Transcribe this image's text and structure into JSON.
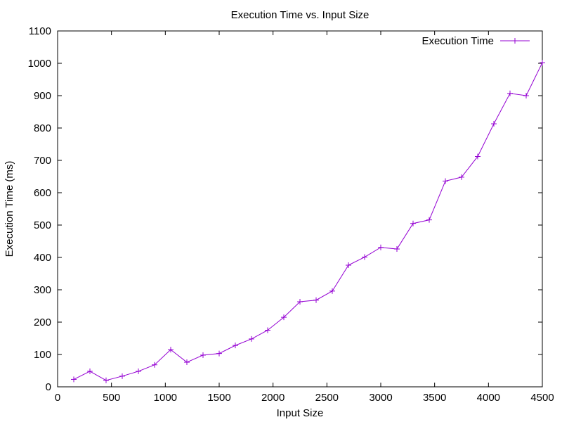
{
  "chart_data": {
    "type": "line",
    "title": "Execution Time vs. Input Size",
    "xlabel": "Input Size",
    "ylabel": "Execution Time (ms)",
    "xlim": [
      0,
      4500
    ],
    "ylim": [
      0,
      1100
    ],
    "xticks": [
      0,
      500,
      1000,
      1500,
      2000,
      2500,
      3000,
      3500,
      4000,
      4500
    ],
    "yticks": [
      0,
      100,
      200,
      300,
      400,
      500,
      600,
      700,
      800,
      900,
      1000,
      1100
    ],
    "grid": false,
    "legend_position": "top-right",
    "series": [
      {
        "name": "Execution Time",
        "color": "#9400d3",
        "marker": "plus",
        "x": [
          150,
          300,
          450,
          600,
          750,
          900,
          1050,
          1200,
          1350,
          1500,
          1650,
          1800,
          1950,
          2100,
          2250,
          2400,
          2550,
          2700,
          2850,
          3000,
          3150,
          3300,
          3450,
          3600,
          3750,
          3900,
          4050,
          4200,
          4350,
          4500
        ],
        "y": [
          23,
          48,
          20,
          33,
          48,
          68,
          115,
          76,
          98,
          103,
          128,
          148,
          175,
          215,
          263,
          268,
          296,
          376,
          401,
          431,
          426,
          505,
          516,
          636,
          648,
          712,
          813,
          907,
          900,
          1002
        ]
      }
    ]
  }
}
